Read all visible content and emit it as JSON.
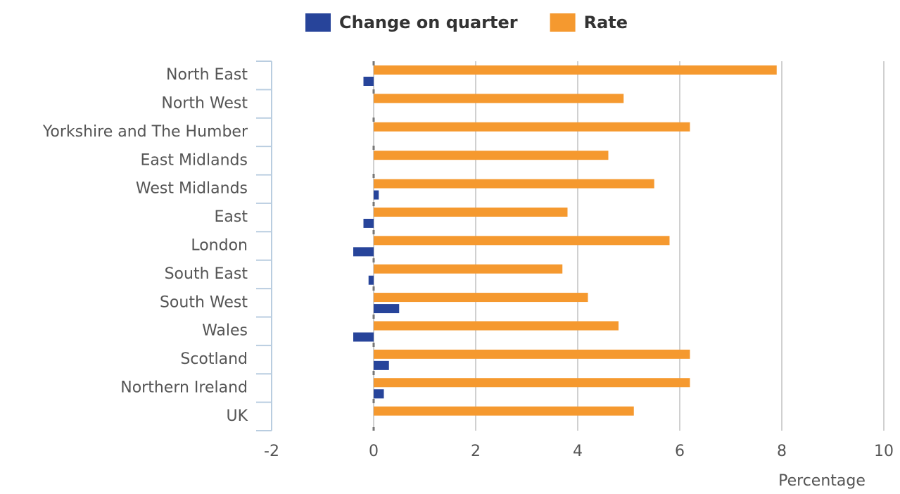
{
  "chart_data": {
    "type": "hbar",
    "x_label": "Percentage",
    "categories": [
      "North East",
      "North West",
      "Yorkshire and The Humber",
      "East Midlands",
      "West Midlands",
      "East",
      "London",
      "South East",
      "South West",
      "Wales",
      "Scotland",
      "Northern Ireland",
      "UK"
    ],
    "series": [
      {
        "name": "Change on quarter",
        "color": "#27449a",
        "values": [
          -0.2,
          0,
          0,
          0,
          0.1,
          -0.2,
          -0.4,
          -0.1,
          0.5,
          -0.4,
          0.3,
          0.2,
          0
        ]
      },
      {
        "name": "Rate",
        "color": "#f5992f",
        "values": [
          7.9,
          4.9,
          6.2,
          4.6,
          5.5,
          3.8,
          5.8,
          3.7,
          4.2,
          4.8,
          6.2,
          6.2,
          5.1
        ]
      }
    ],
    "xlim": [
      -2,
      10
    ],
    "xticks": [
      -2,
      0,
      2,
      4,
      6,
      8,
      10
    ],
    "grid": true
  }
}
